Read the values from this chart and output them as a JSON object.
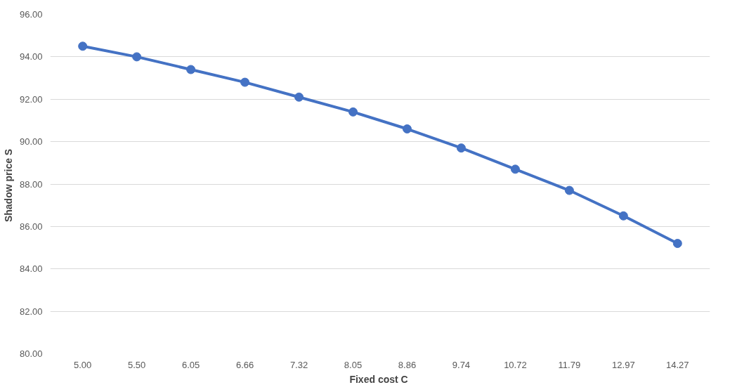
{
  "chart_data": {
    "type": "line",
    "xlabel": "Fixed cost  C",
    "ylabel": "Shadow  price S",
    "categories": [
      "5.00",
      "5.50",
      "6.05",
      "6.66",
      "7.32",
      "8.05",
      "8.86",
      "9.74",
      "10.72",
      "11.79",
      "12.97",
      "14.27"
    ],
    "series": [
      {
        "color": "#4472c4",
        "values": [
          94.5,
          94.0,
          93.4,
          92.8,
          92.1,
          91.4,
          90.6,
          89.7,
          88.7,
          87.7,
          86.5,
          85.2
        ]
      }
    ],
    "ylim": [
      80,
      96
    ],
    "yticks": [
      {
        "value": 80,
        "label": "80.00"
      },
      {
        "value": 82,
        "label": "82.00"
      },
      {
        "value": 84,
        "label": "84.00"
      },
      {
        "value": 86,
        "label": "86.00"
      },
      {
        "value": 88,
        "label": "88.00"
      },
      {
        "value": 90,
        "label": "90.00"
      },
      {
        "value": 92,
        "label": "92.00"
      },
      {
        "value": 94,
        "label": "94.00"
      },
      {
        "value": 96,
        "label": "96.00"
      }
    ],
    "grid": "y",
    "marker": "circle",
    "line_style": "solid"
  }
}
